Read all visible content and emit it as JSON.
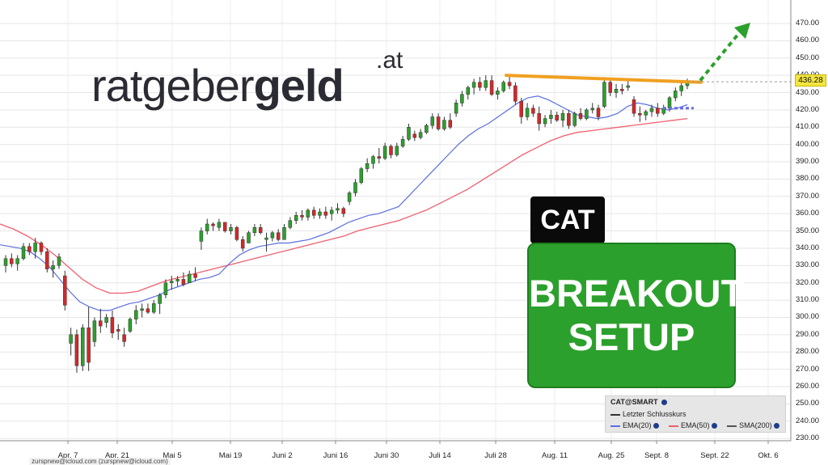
{
  "logo": {
    "part1": "ratgeber",
    "part2": "geld",
    "tld": ".at"
  },
  "ticker_label": "CAT",
  "setup_label": {
    "line1": "BREAKOUT",
    "line2": "SETUP"
  },
  "legend": {
    "title": "CAT@SMART",
    "last_close": "Letzter Schlusskurs",
    "ema20": "EMA(20)",
    "ema50": "EMA(50)",
    "sma200": "SMA(200)"
  },
  "watermark": "zurspnew@icloud.com (zurspnew@icloud.com)",
  "colors": {
    "up": "#2ca02c",
    "down": "#d62728",
    "ema20": "#5b6ee1",
    "ema50": "#f06070",
    "resistance": "#f0a020",
    "arrow": "#2ca02c",
    "projection": "#6a6ae0"
  },
  "chart_data": {
    "type": "candlestick",
    "last_price": "436.28",
    "ylim": [
      230,
      480
    ],
    "y_ticks": [
      "470.00",
      "460.00",
      "450.00",
      "440.00",
      "430.00",
      "420.00",
      "410.00",
      "400.00",
      "390.00",
      "380.00",
      "370.00",
      "360.00",
      "350.00",
      "340.00",
      "330.00",
      "320.00",
      "310.00",
      "300.00",
      "290.00",
      "280.00",
      "270.00",
      "260.00",
      "250.00",
      "240.00",
      "230.00"
    ],
    "x_ticks": [
      "Apr. 7",
      "Apr. 21",
      "Mai 5",
      "Mai 19",
      "Juni 2",
      "Juni 16",
      "Juni 30",
      "Juli 14",
      "Juli 28",
      "Aug. 11",
      "Aug. 25",
      "Sept. 8",
      "Sept. 22",
      "Okt. 6"
    ],
    "candles": [
      {
        "o": 330,
        "h": 336,
        "l": 326,
        "c": 334
      },
      {
        "o": 334,
        "h": 337,
        "l": 329,
        "c": 331
      },
      {
        "o": 331,
        "h": 336,
        "l": 327,
        "c": 334
      },
      {
        "o": 334,
        "h": 343,
        "l": 333,
        "c": 341
      },
      {
        "o": 341,
        "h": 343,
        "l": 336,
        "c": 338
      },
      {
        "o": 338,
        "h": 346,
        "l": 334,
        "c": 343
      },
      {
        "o": 343,
        "h": 344,
        "l": 336,
        "c": 338
      },
      {
        "o": 338,
        "h": 340,
        "l": 326,
        "c": 328
      },
      {
        "o": 328,
        "h": 333,
        "l": 323,
        "c": 330
      },
      {
        "o": 330,
        "h": 337,
        "l": 328,
        "c": 335
      },
      {
        "o": 324,
        "h": 327,
        "l": 304,
        "c": 307
      },
      {
        "o": 285,
        "h": 294,
        "l": 278,
        "c": 290
      },
      {
        "o": 290,
        "h": 293,
        "l": 268,
        "c": 272
      },
      {
        "o": 272,
        "h": 296,
        "l": 269,
        "c": 294
      },
      {
        "o": 294,
        "h": 306,
        "l": 269,
        "c": 274
      },
      {
        "o": 286,
        "h": 300,
        "l": 283,
        "c": 298
      },
      {
        "o": 298,
        "h": 305,
        "l": 291,
        "c": 295
      },
      {
        "o": 297,
        "h": 302,
        "l": 294,
        "c": 300
      },
      {
        "o": 300,
        "h": 304,
        "l": 288,
        "c": 291
      },
      {
        "o": 293,
        "h": 296,
        "l": 287,
        "c": 292
      },
      {
        "o": 290,
        "h": 294,
        "l": 283,
        "c": 286
      },
      {
        "o": 292,
        "h": 300,
        "l": 291,
        "c": 299
      },
      {
        "o": 299,
        "h": 307,
        "l": 296,
        "c": 304
      },
      {
        "o": 304,
        "h": 308,
        "l": 300,
        "c": 305
      },
      {
        "o": 305,
        "h": 308,
        "l": 302,
        "c": 303
      },
      {
        "o": 303,
        "h": 310,
        "l": 302,
        "c": 308
      },
      {
        "o": 308,
        "h": 314,
        "l": 302,
        "c": 313
      },
      {
        "o": 313,
        "h": 322,
        "l": 311,
        "c": 320
      },
      {
        "o": 320,
        "h": 324,
        "l": 316,
        "c": 321
      },
      {
        "o": 321,
        "h": 324,
        "l": 318,
        "c": 322
      },
      {
        "o": 322,
        "h": 326,
        "l": 318,
        "c": 319
      },
      {
        "o": 320,
        "h": 327,
        "l": 320,
        "c": 325
      },
      {
        "o": 325,
        "h": 329,
        "l": 321,
        "c": 323
      },
      {
        "o": 344,
        "h": 352,
        "l": 339,
        "c": 350
      },
      {
        "o": 350,
        "h": 357,
        "l": 348,
        "c": 354
      },
      {
        "o": 354,
        "h": 355,
        "l": 350,
        "c": 353
      },
      {
        "o": 352,
        "h": 357,
        "l": 350,
        "c": 355
      },
      {
        "o": 355,
        "h": 355,
        "l": 349,
        "c": 350
      },
      {
        "o": 350,
        "h": 354,
        "l": 348,
        "c": 352
      },
      {
        "o": 352,
        "h": 353,
        "l": 344,
        "c": 345
      },
      {
        "o": 345,
        "h": 347,
        "l": 338,
        "c": 340
      },
      {
        "o": 343,
        "h": 350,
        "l": 343,
        "c": 349
      },
      {
        "o": 349,
        "h": 354,
        "l": 347,
        "c": 352
      },
      {
        "o": 352,
        "h": 354,
        "l": 348,
        "c": 349
      },
      {
        "o": 345,
        "h": 349,
        "l": 338,
        "c": 346
      },
      {
        "o": 346,
        "h": 350,
        "l": 344,
        "c": 349
      },
      {
        "o": 349,
        "h": 351,
        "l": 344,
        "c": 345
      },
      {
        "o": 345,
        "h": 354,
        "l": 345,
        "c": 352
      },
      {
        "o": 352,
        "h": 358,
        "l": 351,
        "c": 356
      },
      {
        "o": 356,
        "h": 361,
        "l": 354,
        "c": 359
      },
      {
        "o": 359,
        "h": 362,
        "l": 356,
        "c": 358
      },
      {
        "o": 358,
        "h": 363,
        "l": 356,
        "c": 362
      },
      {
        "o": 362,
        "h": 364,
        "l": 357,
        "c": 359
      },
      {
        "o": 359,
        "h": 363,
        "l": 357,
        "c": 361
      },
      {
        "o": 361,
        "h": 364,
        "l": 357,
        "c": 359
      },
      {
        "o": 360,
        "h": 364,
        "l": 356,
        "c": 362
      },
      {
        "o": 362,
        "h": 366,
        "l": 360,
        "c": 363
      },
      {
        "o": 363,
        "h": 364,
        "l": 358,
        "c": 360
      },
      {
        "o": 367,
        "h": 373,
        "l": 365,
        "c": 372
      },
      {
        "o": 372,
        "h": 380,
        "l": 370,
        "c": 378
      },
      {
        "o": 378,
        "h": 387,
        "l": 377,
        "c": 386
      },
      {
        "o": 386,
        "h": 392,
        "l": 384,
        "c": 389
      },
      {
        "o": 389,
        "h": 394,
        "l": 386,
        "c": 393
      },
      {
        "o": 393,
        "h": 398,
        "l": 389,
        "c": 392
      },
      {
        "o": 392,
        "h": 401,
        "l": 391,
        "c": 399
      },
      {
        "o": 399,
        "h": 400,
        "l": 392,
        "c": 394
      },
      {
        "o": 394,
        "h": 401,
        "l": 393,
        "c": 399
      },
      {
        "o": 399,
        "h": 405,
        "l": 398,
        "c": 403
      },
      {
        "o": 403,
        "h": 412,
        "l": 402,
        "c": 410
      },
      {
        "o": 406,
        "h": 408,
        "l": 402,
        "c": 404
      },
      {
        "o": 404,
        "h": 409,
        "l": 403,
        "c": 407
      },
      {
        "o": 407,
        "h": 412,
        "l": 406,
        "c": 411
      },
      {
        "o": 411,
        "h": 418,
        "l": 409,
        "c": 416
      },
      {
        "o": 416,
        "h": 418,
        "l": 408,
        "c": 409
      },
      {
        "o": 409,
        "h": 416,
        "l": 408,
        "c": 414
      },
      {
        "o": 414,
        "h": 418,
        "l": 409,
        "c": 410
      },
      {
        "o": 418,
        "h": 426,
        "l": 416,
        "c": 424
      },
      {
        "o": 424,
        "h": 431,
        "l": 422,
        "c": 429
      },
      {
        "o": 429,
        "h": 434,
        "l": 426,
        "c": 433
      },
      {
        "o": 433,
        "h": 438,
        "l": 429,
        "c": 436
      },
      {
        "o": 436,
        "h": 439,
        "l": 431,
        "c": 433
      },
      {
        "o": 433,
        "h": 440,
        "l": 431,
        "c": 437
      },
      {
        "o": 437,
        "h": 440,
        "l": 428,
        "c": 429
      },
      {
        "o": 429,
        "h": 433,
        "l": 426,
        "c": 431
      },
      {
        "o": 431,
        "h": 437,
        "l": 430,
        "c": 436
      },
      {
        "o": 436,
        "h": 440,
        "l": 432,
        "c": 434
      },
      {
        "o": 434,
        "h": 436,
        "l": 423,
        "c": 425
      },
      {
        "o": 425,
        "h": 427,
        "l": 412,
        "c": 416
      },
      {
        "o": 416,
        "h": 424,
        "l": 414,
        "c": 421
      },
      {
        "o": 421,
        "h": 423,
        "l": 416,
        "c": 418
      },
      {
        "o": 418,
        "h": 422,
        "l": 408,
        "c": 412
      },
      {
        "o": 412,
        "h": 417,
        "l": 410,
        "c": 415
      },
      {
        "o": 415,
        "h": 420,
        "l": 412,
        "c": 417
      },
      {
        "o": 417,
        "h": 419,
        "l": 413,
        "c": 414
      },
      {
        "o": 414,
        "h": 420,
        "l": 410,
        "c": 418
      },
      {
        "o": 418,
        "h": 420,
        "l": 409,
        "c": 411
      },
      {
        "o": 411,
        "h": 419,
        "l": 410,
        "c": 418
      },
      {
        "o": 418,
        "h": 421,
        "l": 414,
        "c": 415
      },
      {
        "o": 415,
        "h": 421,
        "l": 414,
        "c": 420
      },
      {
        "o": 420,
        "h": 424,
        "l": 418,
        "c": 421
      },
      {
        "o": 421,
        "h": 423,
        "l": 414,
        "c": 416
      },
      {
        "o": 422,
        "h": 439,
        "l": 421,
        "c": 436
      },
      {
        "o": 436,
        "h": 438,
        "l": 428,
        "c": 430
      },
      {
        "o": 430,
        "h": 435,
        "l": 427,
        "c": 432
      },
      {
        "o": 432,
        "h": 435,
        "l": 429,
        "c": 431
      },
      {
        "o": 433,
        "h": 437,
        "l": 431,
        "c": 434
      },
      {
        "o": 426,
        "h": 428,
        "l": 416,
        "c": 418
      },
      {
        "o": 418,
        "h": 422,
        "l": 413,
        "c": 417
      },
      {
        "o": 417,
        "h": 420,
        "l": 414,
        "c": 419
      },
      {
        "o": 419,
        "h": 423,
        "l": 416,
        "c": 421
      },
      {
        "o": 421,
        "h": 424,
        "l": 416,
        "c": 418
      },
      {
        "o": 418,
        "h": 423,
        "l": 417,
        "c": 421
      },
      {
        "o": 421,
        "h": 428,
        "l": 419,
        "c": 427
      },
      {
        "o": 427,
        "h": 433,
        "l": 425,
        "c": 431
      },
      {
        "o": 431,
        "h": 436,
        "l": 428,
        "c": 434
      },
      {
        "o": 434,
        "h": 438,
        "l": 432,
        "c": 436
      }
    ],
    "ema20": [
      342,
      341,
      340,
      338,
      334,
      329,
      322,
      315,
      309,
      306,
      304,
      304,
      306,
      308,
      309,
      311,
      313,
      316,
      318,
      320,
      322,
      323,
      325,
      331,
      336,
      339,
      341,
      342,
      343,
      343,
      344,
      345,
      347,
      349,
      352,
      355,
      357,
      359,
      360,
      362,
      364,
      370,
      376,
      382,
      388,
      394,
      400,
      405,
      409,
      412,
      416,
      420,
      424,
      427,
      428,
      426,
      423,
      420,
      417,
      416,
      415,
      416,
      418,
      422,
      424,
      423,
      421,
      420,
      421,
      423
    ],
    "ema50": [
      354,
      351,
      347,
      342,
      336,
      329,
      322,
      317,
      314,
      314,
      315,
      318,
      321,
      323,
      325,
      327,
      329,
      331,
      333,
      335,
      337,
      339,
      341,
      343,
      345,
      347,
      350,
      352,
      354,
      356,
      359,
      362,
      366,
      370,
      374,
      379,
      384,
      389,
      394,
      398,
      402,
      405,
      407,
      408,
      409,
      410,
      411,
      412,
      413,
      414,
      415
    ],
    "sma200_note": "not visible",
    "resistance_line": [
      [
        "Juli 28",
        440
      ],
      [
        "Sept. 22",
        436
      ]
    ],
    "projection_target": 470
  }
}
